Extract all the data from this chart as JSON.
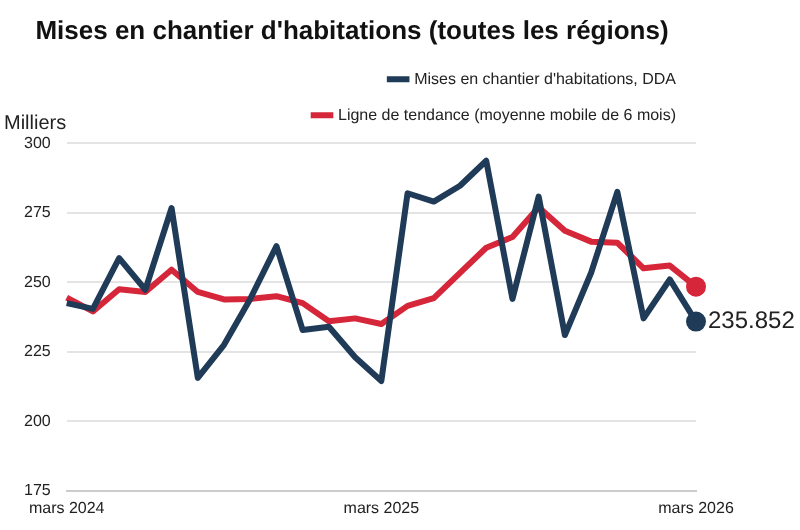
{
  "chart_data": {
    "type": "line",
    "title": "Mises en chantier d'habitations (toutes les régions)",
    "ylabel": "Milliers",
    "categories": [
      "mars 2024",
      null,
      null,
      null,
      null,
      null,
      null,
      null,
      null,
      null,
      null,
      null,
      "mars 2025",
      null,
      null,
      null,
      null,
      null,
      null,
      null,
      null,
      null,
      null,
      null,
      "mars 2026"
    ],
    "series": [
      {
        "name": "Mises en chantier d'habitations, DDA",
        "color": "#1f3b57",
        "values": [
          242.5,
          240.4,
          258.7,
          247.3,
          276.7,
          215.6,
          227.5,
          244,
          263,
          232.8,
          234,
          223,
          214.5,
          282,
          279,
          284.7,
          293.7,
          244,
          280.8,
          231,
          253.4,
          282.5,
          237,
          251,
          235.852
        ]
      },
      {
        "name": "Ligne de tendance (moyenne mobile de 6 mois)",
        "color": "#d6263a",
        "values": [
          244.5,
          239.5,
          247.5,
          246.5,
          254.5,
          246.5,
          243.8,
          244,
          245,
          242.5,
          236,
          237,
          235,
          241.5,
          244.3,
          253.4,
          262.4,
          266.3,
          277,
          268.5,
          264.6,
          264.2,
          255,
          256,
          248.4
        ]
      }
    ],
    "annotations": [
      {
        "text": "235.852",
        "x": "mars 2026",
        "y": 235.852
      }
    ],
    "ylim": [
      175,
      300
    ],
    "yticks": [
      175,
      200,
      225,
      250,
      275,
      300
    ],
    "grid": "y",
    "legend": "top",
    "line_style": "solid"
  }
}
